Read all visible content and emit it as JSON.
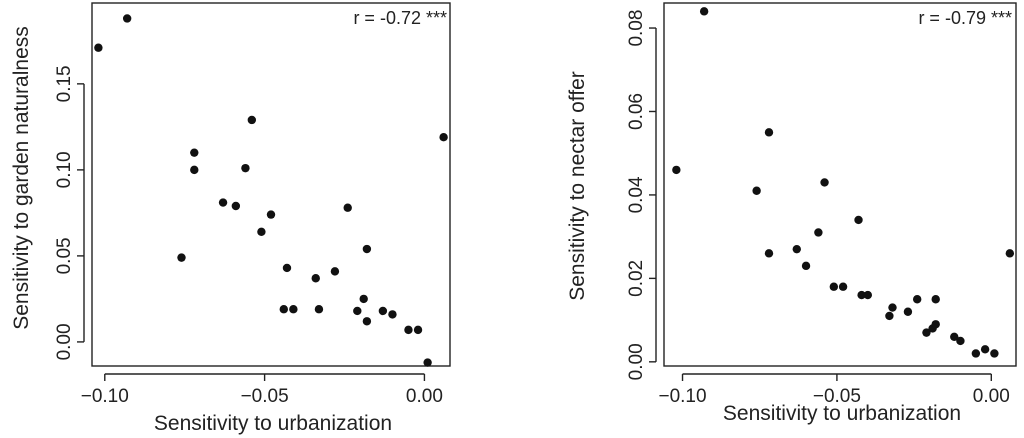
{
  "chart_data": [
    {
      "type": "scatter",
      "xlabel": "Sensitivity to urbanization",
      "ylabel": "Sensitivity to garden naturalness",
      "annotation": "r = -0.72 ***",
      "xlim": [
        -0.104,
        0.008
      ],
      "ylim": [
        -0.014,
        0.197
      ],
      "xticks": [
        -0.1,
        -0.05,
        0.0
      ],
      "xtick_labels": [
        "−0.10",
        "−0.05",
        "0.00"
      ],
      "yticks": [
        0.0,
        0.05,
        0.1,
        0.15
      ],
      "ytick_labels": [
        "0.00",
        "0.05",
        "0.10",
        "0.15"
      ],
      "grid": false,
      "points": [
        [
          -0.102,
          0.171
        ],
        [
          -0.093,
          0.188
        ],
        [
          -0.076,
          0.049
        ],
        [
          -0.072,
          0.11
        ],
        [
          -0.072,
          0.1
        ],
        [
          -0.063,
          0.081
        ],
        [
          -0.059,
          0.079
        ],
        [
          -0.056,
          0.101
        ],
        [
          -0.054,
          0.129
        ],
        [
          -0.051,
          0.064
        ],
        [
          -0.048,
          0.074
        ],
        [
          -0.044,
          0.019
        ],
        [
          -0.043,
          0.043
        ],
        [
          -0.041,
          0.019
        ],
        [
          -0.034,
          0.037
        ],
        [
          -0.033,
          0.019
        ],
        [
          -0.028,
          0.041
        ],
        [
          -0.024,
          0.078
        ],
        [
          -0.021,
          0.018
        ],
        [
          -0.019,
          0.025
        ],
        [
          -0.018,
          0.012
        ],
        [
          -0.018,
          0.054
        ],
        [
          -0.013,
          0.018
        ],
        [
          -0.01,
          0.016
        ],
        [
          -0.005,
          0.007
        ],
        [
          -0.002,
          0.007
        ],
        [
          0.001,
          -0.012
        ],
        [
          0.006,
          0.119
        ]
      ]
    },
    {
      "type": "scatter",
      "xlabel": "Sensitivity to urbanization",
      "ylabel": "Sensitivity to nectar offer",
      "annotation": "r = -0.79 ***",
      "xlim": [
        -0.106,
        0.008
      ],
      "ylim": [
        -0.001,
        0.086
      ],
      "xticks": [
        -0.1,
        -0.05,
        0.0
      ],
      "xtick_labels": [
        "−0.10",
        "−0.05",
        "0.00"
      ],
      "yticks": [
        0.0,
        0.02,
        0.04,
        0.06,
        0.08
      ],
      "ytick_labels": [
        "0.00",
        "0.02",
        "0.04",
        "0.06",
        "0.08"
      ],
      "grid": false,
      "points": [
        [
          -0.102,
          0.046
        ],
        [
          -0.093,
          0.084
        ],
        [
          -0.076,
          0.041
        ],
        [
          -0.072,
          0.055
        ],
        [
          -0.072,
          0.026
        ],
        [
          -0.063,
          0.027
        ],
        [
          -0.06,
          0.023
        ],
        [
          -0.056,
          0.031
        ],
        [
          -0.054,
          0.043
        ],
        [
          -0.051,
          0.018
        ],
        [
          -0.048,
          0.018
        ],
        [
          -0.043,
          0.034
        ],
        [
          -0.042,
          0.016
        ],
        [
          -0.04,
          0.016
        ],
        [
          -0.033,
          0.011
        ],
        [
          -0.032,
          0.013
        ],
        [
          -0.027,
          0.012
        ],
        [
          -0.024,
          0.015
        ],
        [
          -0.021,
          0.007
        ],
        [
          -0.019,
          0.008
        ],
        [
          -0.018,
          0.009
        ],
        [
          -0.018,
          0.015
        ],
        [
          -0.012,
          0.006
        ],
        [
          -0.01,
          0.005
        ],
        [
          -0.005,
          0.002
        ],
        [
          -0.002,
          0.003
        ],
        [
          0.001,
          0.002
        ],
        [
          0.006,
          0.026
        ]
      ]
    }
  ]
}
